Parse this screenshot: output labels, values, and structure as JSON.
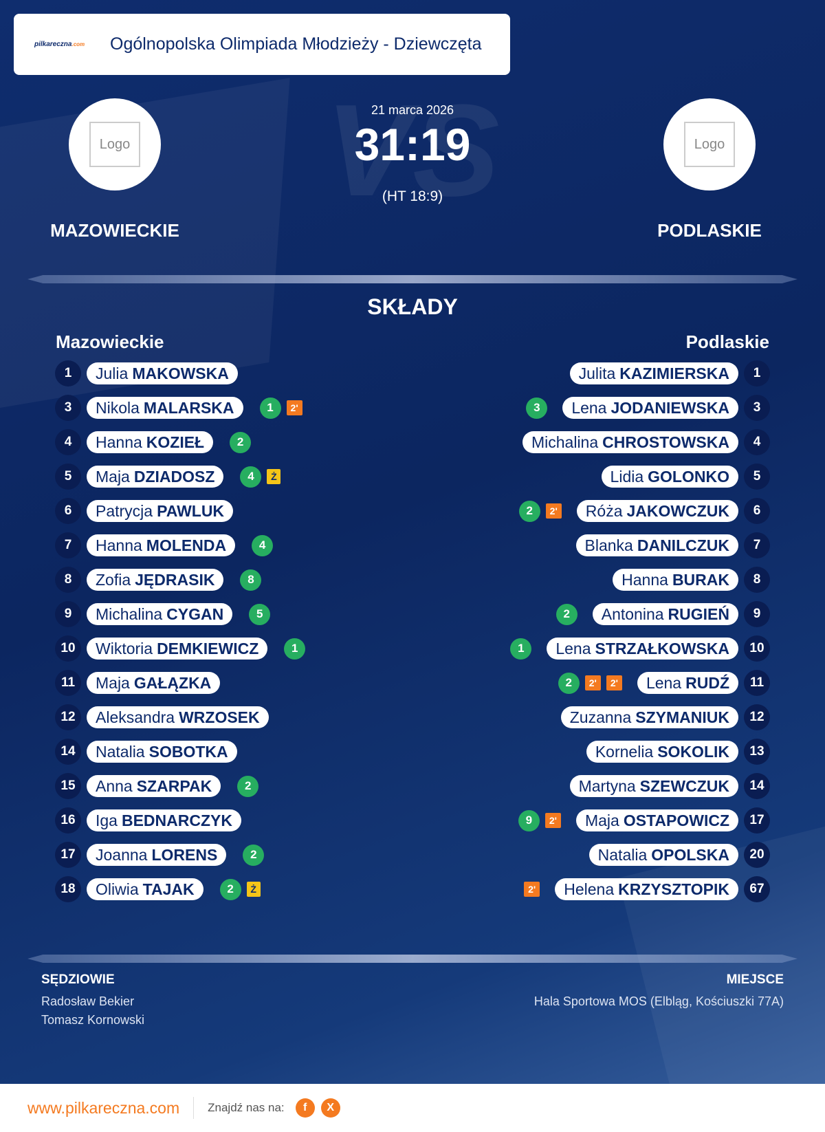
{
  "header": {
    "logo_name": "pilkareczna",
    "logo_domain": ".com",
    "title": "Ogólnopolska Olimpiada Młodzieży - Dziewczęta"
  },
  "match": {
    "watermark": "VS",
    "date": "21 marca 2026",
    "score": "31:19",
    "halftime": "(HT 18:9)",
    "home": {
      "logo": "Logo",
      "name": "MAZOWIECKIE"
    },
    "away": {
      "logo": "Logo",
      "name": "PODLASKIE"
    }
  },
  "lineups": {
    "title": "SKŁADY",
    "home": {
      "name": "Mazowieckie",
      "players": [
        {
          "number": 1,
          "first": "Julia",
          "last": "MAKOWSKA"
        },
        {
          "number": 3,
          "first": "Nikola",
          "last": "MALARSKA",
          "goals": 1,
          "cards": [
            "2'"
          ]
        },
        {
          "number": 4,
          "first": "Hanna",
          "last": "KOZIEŁ",
          "goals": 2
        },
        {
          "number": 5,
          "first": "Maja",
          "last": "DZIADOSZ",
          "goals": 4,
          "cards": [
            "Ż"
          ]
        },
        {
          "number": 6,
          "first": "Patrycja",
          "last": "PAWLUK"
        },
        {
          "number": 7,
          "first": "Hanna",
          "last": "MOLENDA",
          "goals": 4
        },
        {
          "number": 8,
          "first": "Zofia",
          "last": "JĘDRASIK",
          "goals": 8
        },
        {
          "number": 9,
          "first": "Michalina",
          "last": "CYGAN",
          "goals": 5
        },
        {
          "number": 10,
          "first": "Wiktoria",
          "last": "DEMKIEWICZ",
          "goals": 1
        },
        {
          "number": 11,
          "first": "Maja",
          "last": "GAŁĄZKA"
        },
        {
          "number": 12,
          "first": "Aleksandra",
          "last": "WRZOSEK"
        },
        {
          "number": 14,
          "first": "Natalia",
          "last": "SOBOTKA"
        },
        {
          "number": 15,
          "first": "Anna",
          "last": "SZARPAK",
          "goals": 2
        },
        {
          "number": 16,
          "first": "Iga",
          "last": "BEDNARCZYK"
        },
        {
          "number": 17,
          "first": "Joanna",
          "last": "LORENS",
          "goals": 2
        },
        {
          "number": 18,
          "first": "Oliwia",
          "last": "TAJAK",
          "goals": 2,
          "cards": [
            "Ż"
          ]
        }
      ]
    },
    "away": {
      "name": "Podlaskie",
      "players": [
        {
          "number": 1,
          "first": "Julita",
          "last": "KAZIMIERSKA"
        },
        {
          "number": 3,
          "first": "Lena",
          "last": "JODANIEWSKA",
          "goals": 3
        },
        {
          "number": 4,
          "first": "Michalina",
          "last": "CHROSTOWSKA"
        },
        {
          "number": 5,
          "first": "Lidia",
          "last": "GOLONKO"
        },
        {
          "number": 6,
          "first": "Róża",
          "last": "JAKOWCZUK",
          "goals": 2,
          "cards": [
            "2'"
          ]
        },
        {
          "number": 7,
          "first": "Blanka",
          "last": "DANILCZUK"
        },
        {
          "number": 8,
          "first": "Hanna",
          "last": "BURAK"
        },
        {
          "number": 9,
          "first": "Antonina",
          "last": "RUGIEŃ",
          "goals": 2
        },
        {
          "number": 10,
          "first": "Lena",
          "last": "STRZAŁKOWSKA",
          "goals": 1
        },
        {
          "number": 11,
          "first": "Lena",
          "last": "RUDŹ",
          "goals": 2,
          "cards": [
            "2'",
            "2'"
          ]
        },
        {
          "number": 12,
          "first": "Zuzanna",
          "last": "SZYMANIUK"
        },
        {
          "number": 13,
          "first": "Kornelia",
          "last": "SOKOLIK"
        },
        {
          "number": 14,
          "first": "Martyna",
          "last": "SZEWCZUK"
        },
        {
          "number": 17,
          "first": "Maja",
          "last": "OSTAPOWICZ",
          "goals": 9,
          "cards": [
            "2'"
          ]
        },
        {
          "number": 20,
          "first": "Natalia",
          "last": "OPOLSKA"
        },
        {
          "number": 67,
          "first": "Helena",
          "last": "KRZYSZTOPIK",
          "cards": [
            "2'"
          ]
        }
      ]
    }
  },
  "officials": {
    "title": "SĘDZIOWIE",
    "names": [
      "Radosław Bekier",
      "Tomasz Kornowski"
    ]
  },
  "venue": {
    "title": "MIEJSCE",
    "name": "Hala Sportowa MOS (Elbląg, Kościuszki 77A)"
  },
  "footer": {
    "site": "www.pilkareczna.com",
    "find_us": "Znajdź nas na:",
    "social": [
      "f",
      "X"
    ]
  }
}
